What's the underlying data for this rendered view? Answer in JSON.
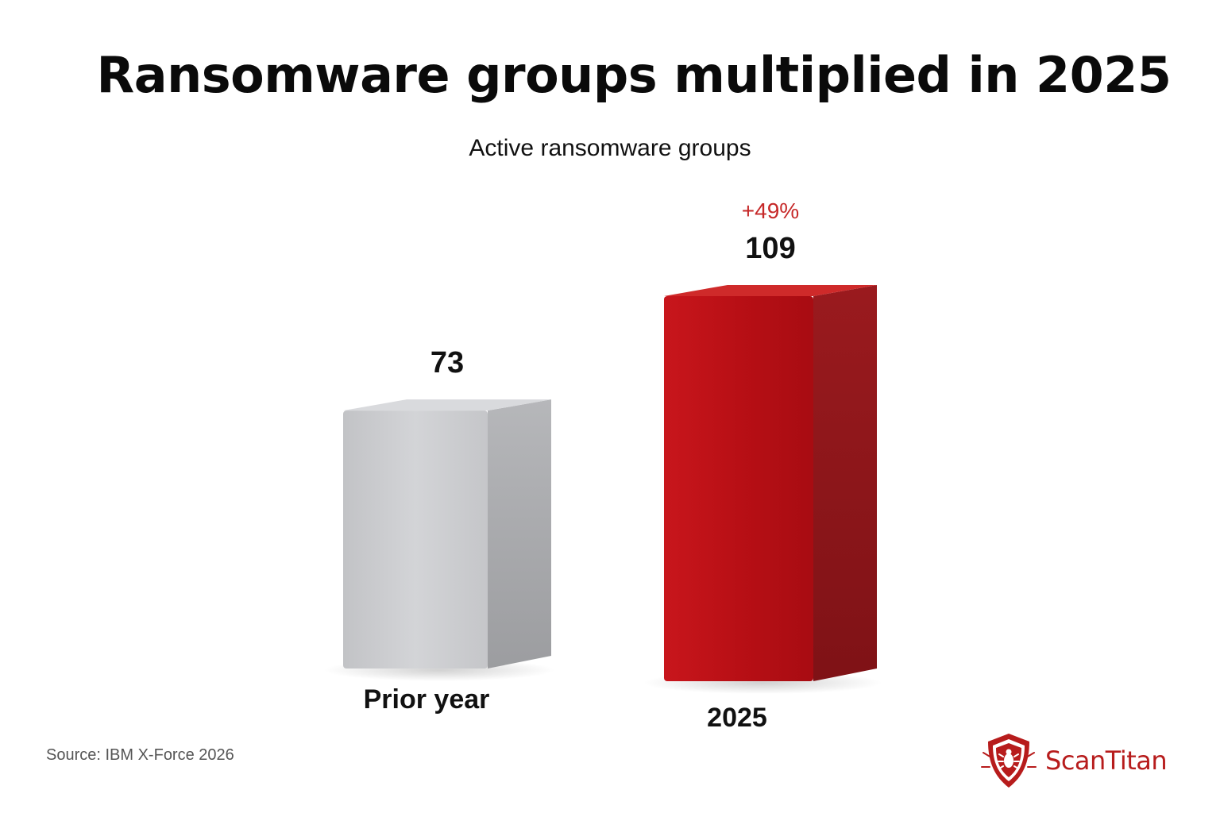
{
  "title": "Ransomware groups multiplied in 2025",
  "subtitle": "Active ransomware groups",
  "source": "Source: IBM X-Force 2026",
  "logo": {
    "text": "ScanTitan",
    "icon": "shield-bug-icon",
    "color": "#b71c1c"
  },
  "chart_data": {
    "type": "bar",
    "categories": [
      "Prior year",
      "2025"
    ],
    "values": [
      73,
      109
    ],
    "value_labels": [
      "73",
      "109"
    ],
    "annotations": [
      {
        "category": "2025",
        "text": "+49%",
        "color": "#c62828"
      }
    ],
    "bar_colors": [
      "#c9c9cc",
      "#c0141a"
    ],
    "ylim": [
      0,
      140
    ],
    "grid": false,
    "legend": "none",
    "style": "3d"
  }
}
